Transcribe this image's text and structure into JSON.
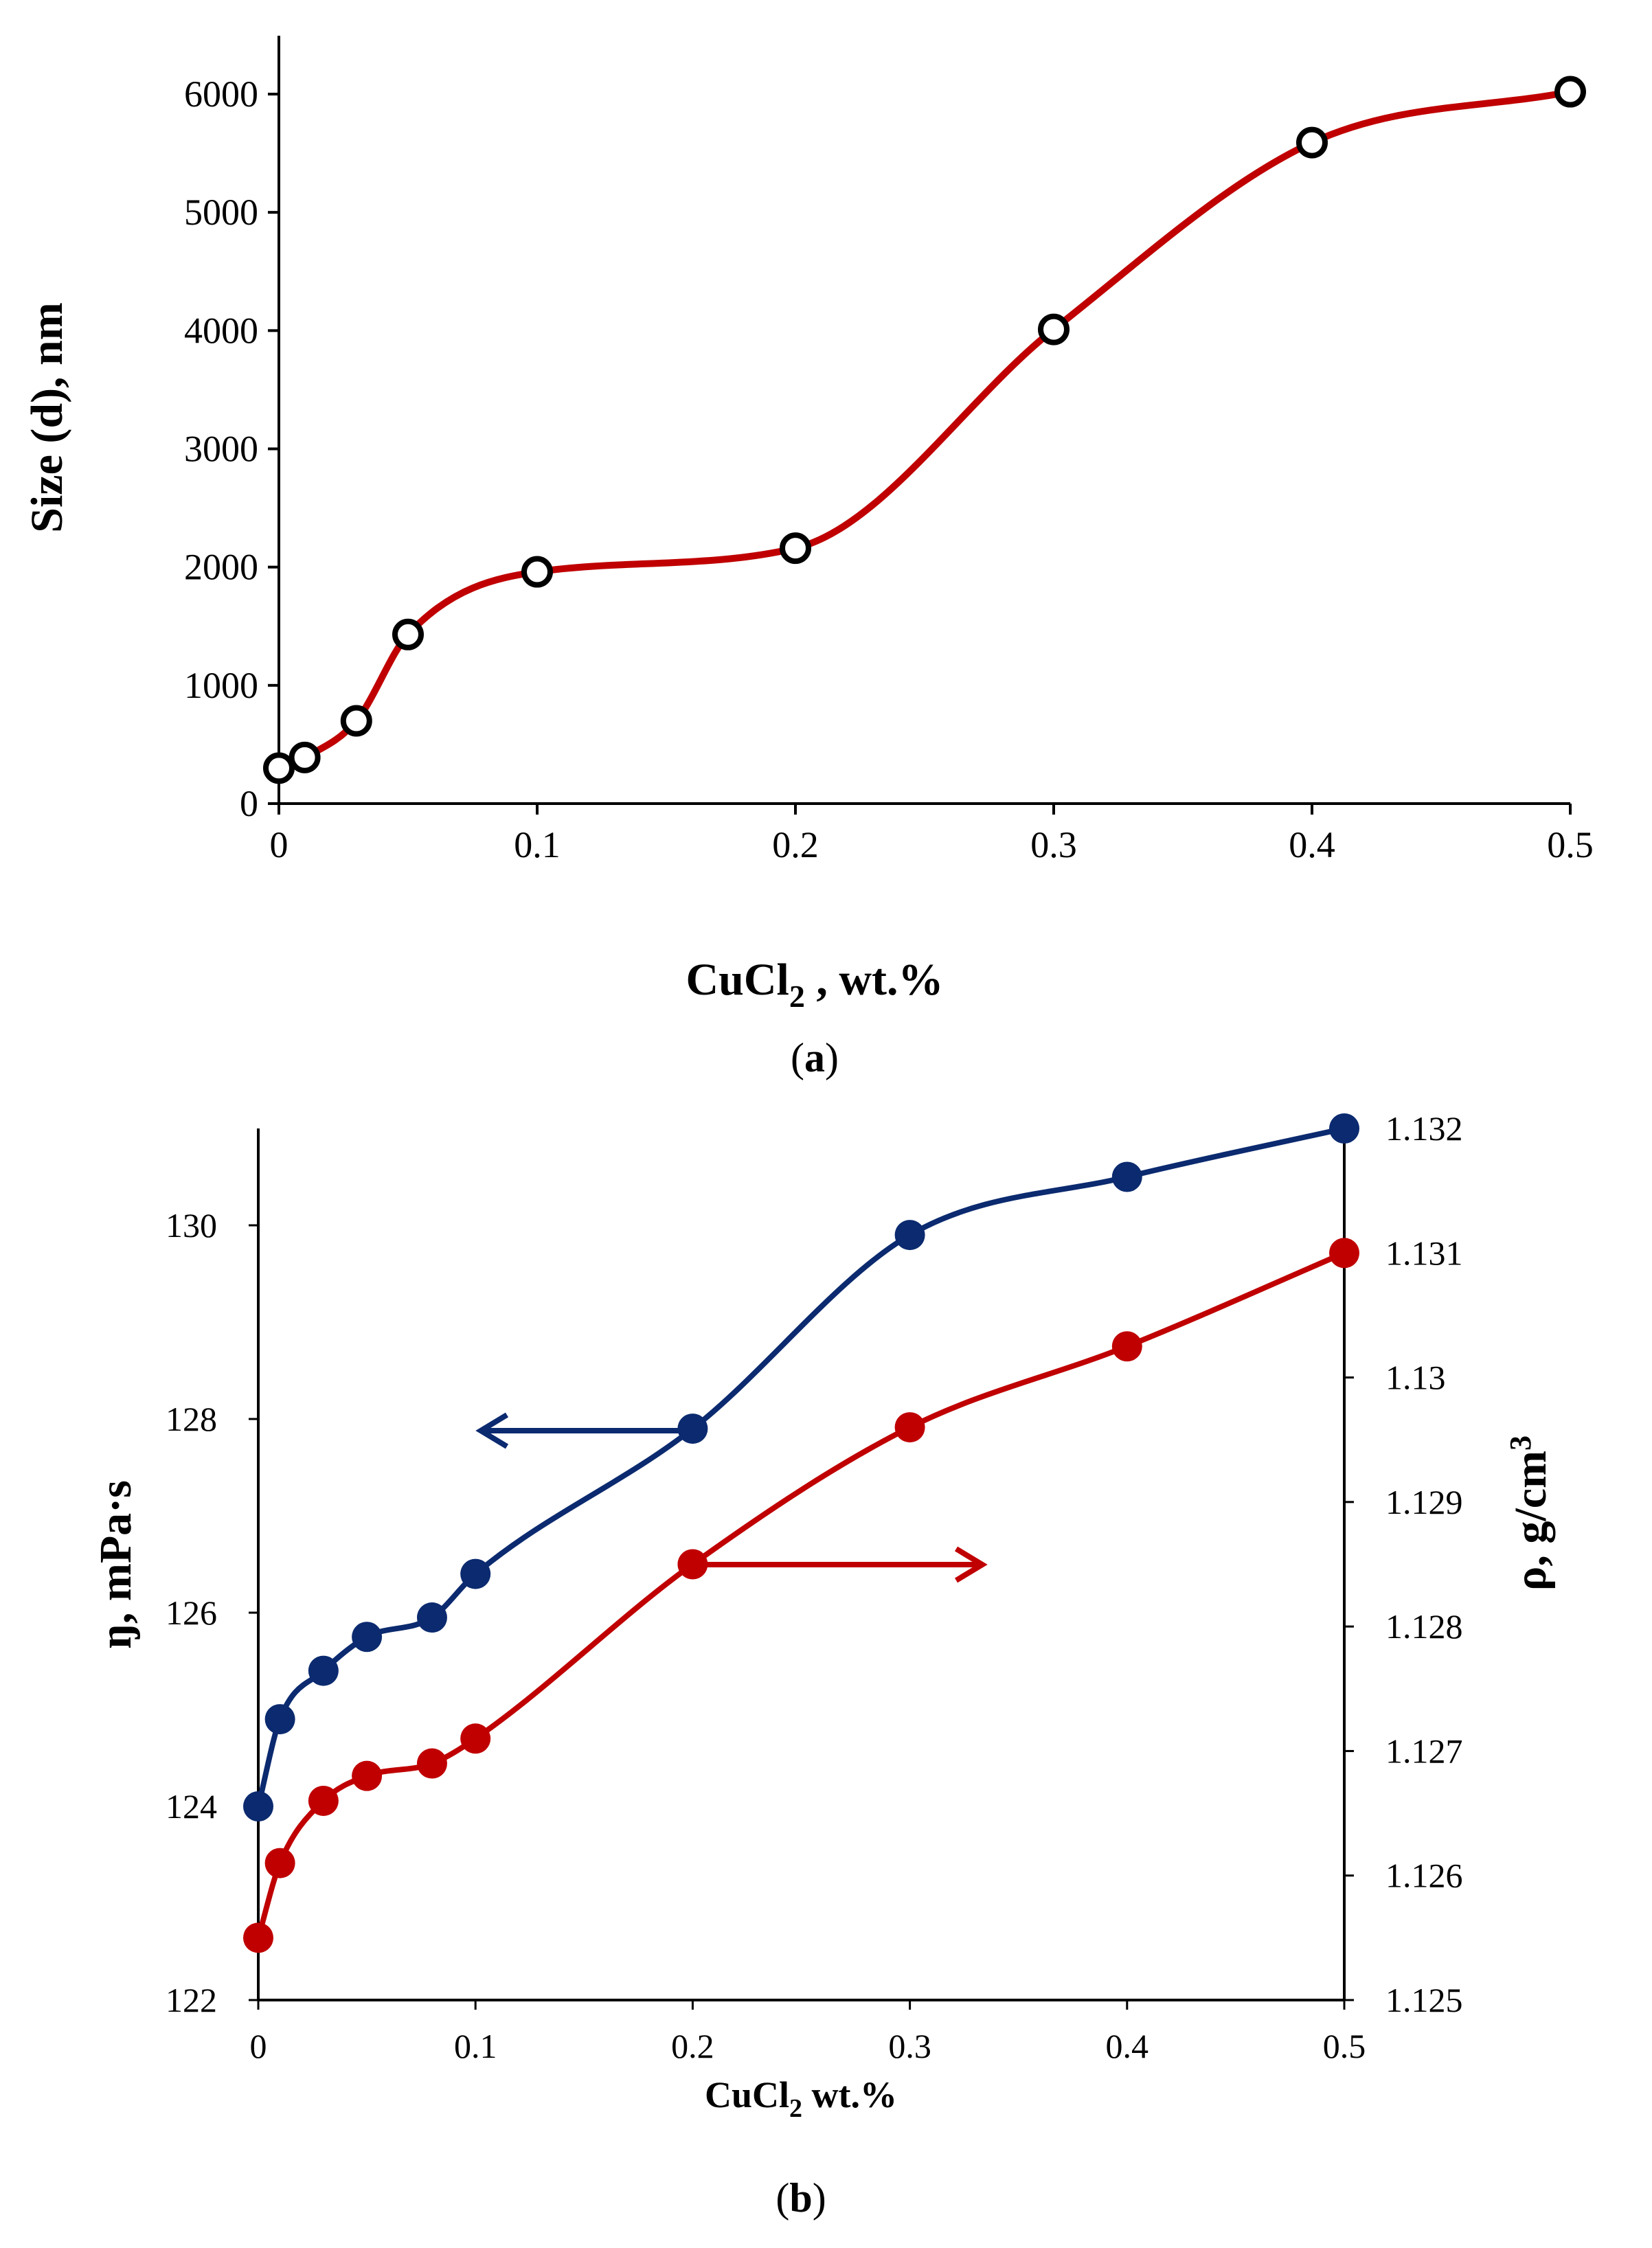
{
  "panels": {
    "a": {
      "label_open": "(",
      "label": "a",
      "label_close": ")"
    },
    "b": {
      "label_open": "(",
      "label": "b",
      "label_close": ")"
    }
  },
  "chart_data": [
    {
      "id": "a",
      "type": "line",
      "title": "",
      "xlabel": {
        "main": "CuCl",
        "sub": "2",
        "rest": " , wt.%"
      },
      "ylabel": "Size (d),  nm",
      "xlim": [
        0,
        0.5
      ],
      "ylim": [
        0,
        6500
      ],
      "xticks": [
        0,
        0.1,
        0.2,
        0.3,
        0.4,
        0.5
      ],
      "xtick_labels": [
        "0",
        "0.1",
        "0.2",
        "0.3",
        "0.4",
        "0.5"
      ],
      "yticks": [
        0,
        1000,
        2000,
        3000,
        4000,
        5000,
        6000
      ],
      "ytick_labels": [
        "0",
        "1000",
        "2000",
        "3000",
        "4000",
        "5000",
        "6000"
      ],
      "grid": false,
      "series": [
        {
          "name": "Size",
          "color": "#c00000",
          "marker": "open-circle",
          "x": [
            0,
            0.01,
            0.03,
            0.05,
            0.1,
            0.2,
            0.3,
            0.4,
            0.5
          ],
          "y": [
            300,
            390,
            700,
            1430,
            1960,
            2160,
            4010,
            5590,
            6020
          ]
        }
      ]
    },
    {
      "id": "b",
      "type": "line",
      "title": "",
      "xlabel": {
        "main": "CuCl",
        "sub": "2",
        "rest": " wt.%"
      },
      "ylabel_left": "ŋ, mPa·s",
      "ylabel_right": {
        "main": "ρ, g/cm",
        "sup": "3"
      },
      "xlim": [
        0,
        0.5
      ],
      "ylim_left": [
        122,
        131
      ],
      "ylim_right": [
        1.125,
        1.132
      ],
      "xticks": [
        0,
        0.1,
        0.2,
        0.3,
        0.4,
        0.5
      ],
      "xtick_labels": [
        "0",
        "0.1",
        "0.2",
        "0.3",
        "0.4",
        "0.5"
      ],
      "yticks_left": [
        122,
        124,
        126,
        128,
        130
      ],
      "ytick_labels_left": [
        "122",
        "124",
        "126",
        "128",
        "130"
      ],
      "yticks_right": [
        1.125,
        1.126,
        1.127,
        1.128,
        1.129,
        1.13,
        1.131,
        1.132
      ],
      "ytick_labels_right": [
        "1.125",
        "1.126",
        "1.127",
        "1.128",
        "1.129",
        "1.13",
        "1.131",
        "1.132"
      ],
      "grid": false,
      "series": [
        {
          "name": "Viscosity",
          "axis": "left",
          "color": "#0b2a6f",
          "marker": "filled-circle",
          "x": [
            0,
            0.01,
            0.03,
            0.05,
            0.08,
            0.1,
            0.2,
            0.3,
            0.4,
            0.5
          ],
          "y": [
            124.0,
            124.9,
            125.4,
            125.75,
            125.95,
            126.4,
            127.9,
            129.9,
            130.5,
            131.0
          ]
        },
        {
          "name": "Density",
          "axis": "right",
          "color": "#c00000",
          "marker": "filled-circle",
          "x": [
            0,
            0.01,
            0.03,
            0.05,
            0.08,
            0.1,
            0.2,
            0.3,
            0.4,
            0.5
          ],
          "y": [
            1.1255,
            1.1261,
            1.1266,
            1.1268,
            1.1269,
            1.1271,
            1.1285,
            1.1296,
            1.13025,
            1.131
          ]
        }
      ],
      "annotations": [
        {
          "type": "arrow",
          "direction": "left",
          "points_to": "left-axis",
          "color": "#0b2a6f"
        },
        {
          "type": "arrow",
          "direction": "right",
          "points_to": "right-axis",
          "color": "#c00000"
        }
      ]
    }
  ]
}
